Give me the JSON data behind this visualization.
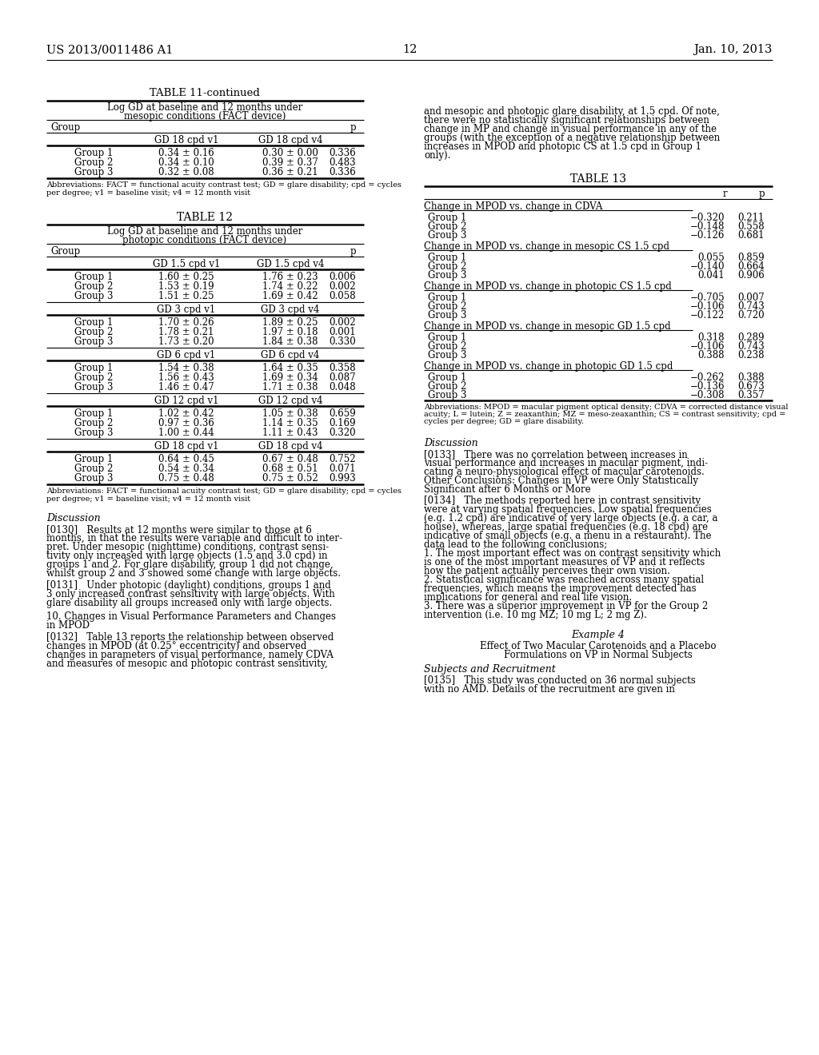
{
  "page_header_left": "US 2013/0011486 A1",
  "page_header_right": "Jan. 10, 2013",
  "page_number": "12",
  "bg_color": "#ffffff",
  "table11_continued_title": "TABLE 11-continued",
  "table11_subtitle1": "Log GD at baseline and 12 months under",
  "table11_subtitle2": "mesopic conditions (FACT device)",
  "table11_col1": "Group",
  "table11_col2": "GD 18 cpd v1",
  "table11_col3": "GD 18 cpd v4",
  "table11_col4": "p",
  "table11_data": [
    [
      "Group 1",
      "0.34 ± 0.16",
      "0.30 ± 0.00",
      "0.336"
    ],
    [
      "Group 2",
      "0.34 ± 0.10",
      "0.39 ± 0.37",
      "0.483"
    ],
    [
      "Group 3",
      "0.32 ± 0.08",
      "0.36 ± 0.21",
      "0.336"
    ]
  ],
  "table11_abbrev1": "Abbreviations: FACT = functional acuity contrast test; GD = glare disability; cpd = cycles",
  "table11_abbrev2": "per degree; v1 = baseline visit; v4 = 12 month visit",
  "table12_title": "TABLE 12",
  "table12_subtitle1": "Log GD at baseline and 12 months under",
  "table12_subtitle2": "photopic conditions (FACT device)",
  "table12_col1": "Group",
  "table12_col4": "p",
  "table12_sections": [
    {
      "col2": "GD 1.5 cpd v1",
      "col3": "GD 1.5 cpd v4",
      "data": [
        [
          "Group 1",
          "1.60 ± 0.25",
          "1.76 ± 0.23",
          "0.006"
        ],
        [
          "Group 2",
          "1.53 ± 0.19",
          "1.74 ± 0.22",
          "0.002"
        ],
        [
          "Group 3",
          "1.51 ± 0.25",
          "1.69 ± 0.42",
          "0.058"
        ]
      ]
    },
    {
      "col2": "GD 3 cpd v1",
      "col3": "GD 3 cpd v4",
      "data": [
        [
          "Group 1",
          "1.70 ± 0.26",
          "1.89 ± 0.25",
          "0.002"
        ],
        [
          "Group 2",
          "1.78 ± 0.21",
          "1.97 ± 0.18",
          "0.001"
        ],
        [
          "Group 3",
          "1.73 ± 0.20",
          "1.84 ± 0.38",
          "0.330"
        ]
      ]
    },
    {
      "col2": "GD 6 cpd v1",
      "col3": "GD 6 cpd v4",
      "data": [
        [
          "Group 1",
          "1.54 ± 0.38",
          "1.64 ± 0.35",
          "0.358"
        ],
        [
          "Group 2",
          "1.56 ± 0.43",
          "1.69 ± 0.34",
          "0.087"
        ],
        [
          "Group 3",
          "1.46 ± 0.47",
          "1.71 ± 0.38",
          "0.048"
        ]
      ]
    },
    {
      "col2": "GD 12 cpd v1",
      "col3": "GD 12 cpd v4",
      "data": [
        [
          "Group 1",
          "1.02 ± 0.42",
          "1.05 ± 0.38",
          "0.659"
        ],
        [
          "Group 2",
          "0.97 ± 0.36",
          "1.14 ± 0.35",
          "0.169"
        ],
        [
          "Group 3",
          "1.00 ± 0.44",
          "1.11 ± 0.43",
          "0.320"
        ]
      ]
    },
    {
      "col2": "GD 18 cpd v1",
      "col3": "GD 18 cpd v4",
      "data": [
        [
          "Group 1",
          "0.64 ± 0.45",
          "0.67 ± 0.48",
          "0.752"
        ],
        [
          "Group 2",
          "0.54 ± 0.34",
          "0.68 ± 0.51",
          "0.071"
        ],
        [
          "Group 3",
          "0.75 ± 0.48",
          "0.75 ± 0.52",
          "0.993"
        ]
      ]
    }
  ],
  "table12_abbrev1": "Abbreviations: FACT = functional acuity contrast test; GD = glare disability; cpd = cycles",
  "table12_abbrev2": "per degree; v1 = baseline visit; v4 = 12 month visit",
  "disc_left_title": "Discussion",
  "para0130_lines": [
    "[0130]   Results at 12 months were similar to those at 6",
    "months, in that the results were variable and difficult to inter-",
    "pret. Under mesopic (nighttime) conditions, contrast sensi-",
    "tivity only increased with large objects (1.5 and 3.0 cpd) in",
    "groups 1 and 2. For glare disability, group 1 did not change,",
    "whilst group 2 and 3 showed some change with large objects."
  ],
  "para0131_lines": [
    "[0131]   Under photopic (daylight) conditions, groups 1 and",
    "3 only increased contrast sensitivity with large objects. With",
    "glare disability all groups increased only with large objects."
  ],
  "para10_lines": [
    "10. Changes in Visual Performance Parameters and Changes",
    "in MPOD"
  ],
  "para0132_lines": [
    "[0132]   Table 13 reports the relationship between observed",
    "changes in MPOD (at 0.25° eccentricity) and observed",
    "changes in parameters of visual performance, namely CDVA",
    "and measures of mesopic and photopic contrast sensitivity,"
  ],
  "right_top_lines": [
    "and mesopic and photopic glare disability, at 1.5 cpd. Of note,",
    "there were no statistically significant relationships between",
    "change in MP and change in visual performance in any of the",
    "groups (with the exception of a negative relationship between",
    "increases in MPOD and photopic CS at 1.5 cpd in Group 1",
    "only)."
  ],
  "table13_title": "TABLE 13",
  "table13_col_r": "r",
  "table13_col_p": "p",
  "table13_sections": [
    {
      "header": "Change in MPOD vs. change in CDVA",
      "data": [
        [
          "Group 1",
          "−0.320",
          "0.211"
        ],
        [
          "Group 2",
          "−0.148",
          "0.558"
        ],
        [
          "Group 3",
          "−0.126",
          "0.681"
        ]
      ]
    },
    {
      "header": "Change in MPOD vs. change in mesopic CS 1.5 cpd",
      "data": [
        [
          "Group 1",
          "0.055",
          "0.859"
        ],
        [
          "Group 2",
          "−0.140",
          "0.664"
        ],
        [
          "Group 3",
          "0.041",
          "0.906"
        ]
      ]
    },
    {
      "header": "Change in MPOD vs. change in photopic CS 1.5 cpd",
      "data": [
        [
          "Group 1",
          "−0.705",
          "0.007"
        ],
        [
          "Group 2",
          "−0.106",
          "0.743"
        ],
        [
          "Group 3",
          "−0.122",
          "0.720"
        ]
      ]
    },
    {
      "header": "Change in MPOD vs. change in mesopic GD 1.5 cpd",
      "data": [
        [
          "Group 1",
          "0.318",
          "0.289"
        ],
        [
          "Group 2",
          "−0.106",
          "0.743"
        ],
        [
          "Group 3",
          "0.388",
          "0.238"
        ]
      ]
    },
    {
      "header": "Change in MPOD vs. change in photopic GD 1.5 cpd",
      "data": [
        [
          "Group 1",
          "−0.262",
          "0.388"
        ],
        [
          "Group 2",
          "−0.136",
          "0.673"
        ],
        [
          "Group 3",
          "−0.308",
          "0.357"
        ]
      ]
    }
  ],
  "table13_abbrev_lines": [
    "Abbreviations: MPOD = macular pigment optical density; CDVA = corrected distance visual",
    "acuity; L = lutein; Z = zeaxanthin; MZ = meso-zeaxanthin; CS = contrast sensitivity; cpd =",
    "cycles per degree; GD = glare disability."
  ],
  "disc_right_title": "Discussion",
  "para0133_lines": [
    "[0133]   There was no correlation between increases in",
    "visual performance and increases in macular pigment, indi-",
    "cating a neuro-physiological effect of macular carotenoids.",
    "Other Conclusions: Changes in VP were Only Statistically",
    "Significant after 6 Months or More"
  ],
  "para0134_lines": [
    "[0134]   The methods reported here in contrast sensitivity",
    "were at varying spatial frequencies. Low spatial frequencies",
    "(e.g. 1.2 cpd) are indicative of very large objects (e.g. a car, a",
    "house), whereas, large spatial frequencies (e.g. 18 cpd) are",
    "indicative of small objects (e.g. a menu in a restaurant). The",
    "data lead to the following conclusions;",
    "1. The most important effect was on contrast sensitivity which",
    "is one of the most important measures of VP and it reflects",
    "how the patient actually perceives their own vision.",
    "2. Statistical significance was reached across many spatial",
    "frequencies, which means the improvement detected has",
    "implications for general and real life vision.",
    "3. There was a superior improvement in VP for the Group 2",
    "intervention (i.e. 10 mg MZ; 10 mg L; 2 mg Z)."
  ],
  "example4_title": "Example 4",
  "example4_sub1": "Effect of Two Macular Carotenoids and a Placebo",
  "example4_sub2": "Formulations on VP in Normal Subjects",
  "subjects_title": "Subjects and Recruitment",
  "para0135_lines": [
    "[0135]   This study was conducted on 36 normal subjects",
    "with no AMD. Details of the recruitment are given in"
  ]
}
